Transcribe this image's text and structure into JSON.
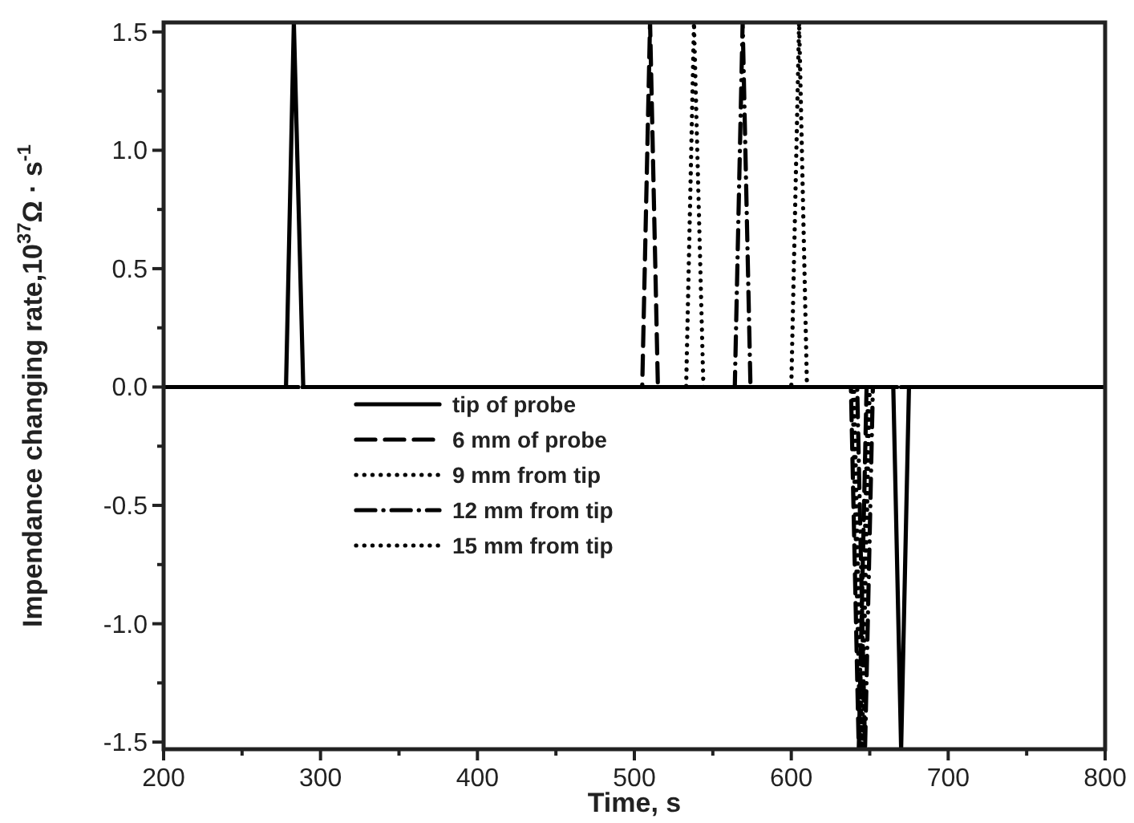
{
  "chart_data": {
    "type": "line",
    "xlabel": "Time, s",
    "ylabel": "Impendance changing rate,10$^{37}$Ω · s$^{-1}$",
    "xlim": [
      200,
      800
    ],
    "ylim": [
      -1.53,
      1.54
    ],
    "xticks": [
      200,
      {
        "value": 250,
        "label": null
      },
      300,
      {
        "value": 350,
        "label": null
      },
      400,
      {
        "value": 450,
        "label": null
      },
      500,
      {
        "value": 550,
        "label": null
      },
      600,
      {
        "value": 650,
        "label": null
      },
      700,
      {
        "value": 750,
        "label": null
      },
      800
    ],
    "yticks": [
      {
        "value": -1.5,
        "label": "-1.5"
      },
      {
        "value": -1.25,
        "label": null
      },
      {
        "value": -1,
        "label": "-1.0"
      },
      {
        "value": -0.75,
        "label": null
      },
      {
        "value": -0.5,
        "label": "-0.5"
      },
      {
        "value": -0.25,
        "label": null
      },
      {
        "value": 0,
        "label": "0.0"
      },
      {
        "value": 0.25,
        "label": null
      },
      {
        "value": 0.5,
        "label": "0.5"
      },
      {
        "value": 0.75,
        "label": null
      },
      {
        "value": 1,
        "label": "1.0"
      },
      {
        "value": 1.25,
        "label": null
      },
      {
        "value": 1.5,
        "label": "1.5"
      }
    ],
    "grid": false,
    "legend": "bottom left",
    "series": [
      {
        "name": "tip of probe",
        "color": "#000000",
        "line_style": "solid",
        "x": [
          200,
          278,
          283,
          289,
          665,
          670,
          675,
          800
        ],
        "values": [
          0,
          0,
          1.54,
          0,
          0,
          -1.53,
          0,
          0
        ]
      },
      {
        "name": "6 mm of probe",
        "color": "#000000",
        "line_style": "dashed",
        "x": [
          200,
          505,
          510,
          515,
          638,
          643,
          648,
          800
        ],
        "values": [
          0,
          0,
          1.54,
          0,
          0,
          -1.53,
          0,
          0
        ]
      },
      {
        "name": "9 mm from tip",
        "color": "#000000",
        "line_style": "dotted",
        "x": [
          200,
          533,
          538,
          544,
          640,
          645,
          650,
          800
        ],
        "values": [
          0,
          0,
          1.54,
          0,
          0,
          -1.53,
          0,
          0
        ]
      },
      {
        "name": "12 mm from tip",
        "color": "#000000",
        "line_style": "dashdot",
        "x": [
          200,
          564,
          569,
          574,
          642,
          647,
          652,
          800
        ],
        "values": [
          0,
          0,
          1.54,
          0,
          0,
          -1.53,
          0,
          0
        ]
      },
      {
        "name": "15 mm from tip",
        "color": "#000000",
        "line_style": "dotted",
        "x": [
          200,
          600,
          605,
          610,
          639,
          644,
          649,
          800
        ],
        "values": [
          0,
          0,
          1.54,
          0,
          0,
          -1.53,
          0,
          0
        ]
      }
    ]
  }
}
